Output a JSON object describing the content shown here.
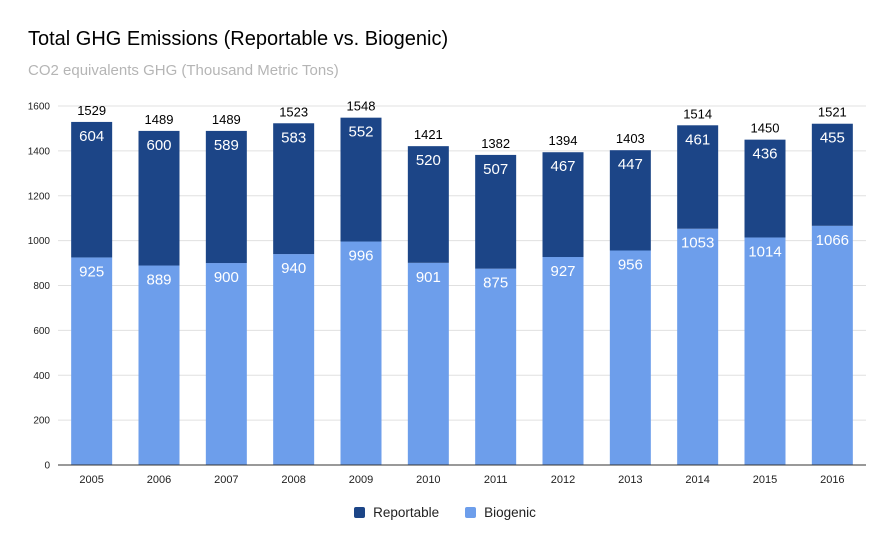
{
  "colors": {
    "reportable": "#1c4587",
    "biogenic": "#6d9eeb",
    "grid": "#e0e0e0",
    "axis_text": "#222222",
    "baseline": "#333333"
  },
  "chart_data": {
    "type": "bar",
    "stacked": true,
    "title": "Total GHG Emissions (Reportable vs. Biogenic)",
    "subtitle": "CO2 equivalents GHG (Thousand Metric Tons)",
    "xlabel": "",
    "ylabel": "",
    "ylim": [
      0,
      1600
    ],
    "yticks": [
      0,
      200,
      400,
      600,
      800,
      1000,
      1200,
      1400,
      1600
    ],
    "grid": true,
    "legend_position": "bottom",
    "categories": [
      "2005",
      "2006",
      "2007",
      "2008",
      "2009",
      "2010",
      "2011",
      "2012",
      "2013",
      "2014",
      "2015",
      "2016"
    ],
    "series": [
      {
        "name": "Biogenic",
        "values": [
          925,
          889,
          900,
          940,
          996,
          901,
          875,
          927,
          956,
          1053,
          1014,
          1066
        ]
      },
      {
        "name": "Reportable",
        "values": [
          604,
          600,
          589,
          583,
          552,
          520,
          507,
          467,
          447,
          461,
          436,
          455
        ]
      }
    ],
    "totals": [
      1529,
      1489,
      1489,
      1523,
      1548,
      1421,
      1382,
      1394,
      1403,
      1514,
      1450,
      1521
    ]
  }
}
